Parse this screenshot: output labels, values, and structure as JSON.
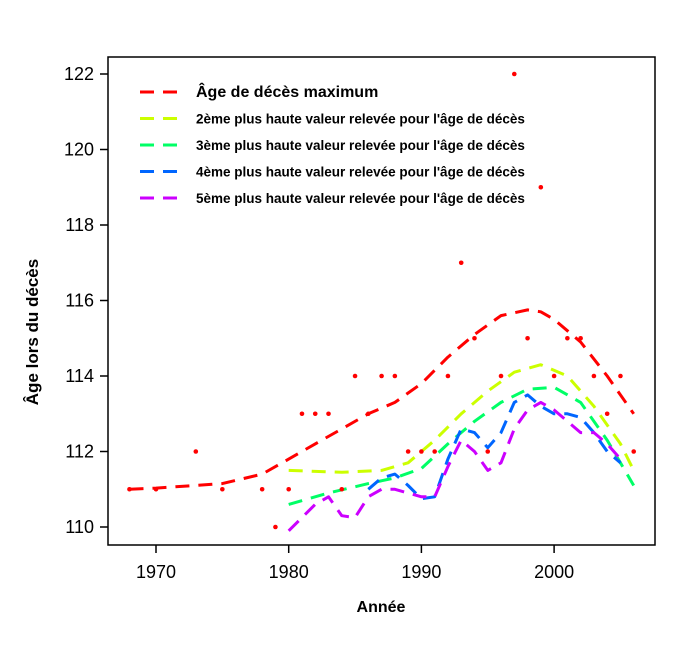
{
  "chart_data": {
    "type": "line",
    "xlabel": "Année",
    "ylabel": "Âge lors du décès",
    "xlim": [
      1966.5,
      2007.7
    ],
    "ylim": [
      109.5,
      122.5
    ],
    "xticks": [
      1970,
      1980,
      1990,
      2000
    ],
    "yticks": [
      110,
      112,
      114,
      116,
      118,
      120,
      122
    ],
    "grid": false,
    "legend_position": "top-left",
    "points": {
      "color": "#ff0000",
      "x": [
        1968,
        1970,
        1973,
        1975,
        1978,
        1979,
        1980,
        1981,
        1982,
        1983,
        1984,
        1985,
        1986,
        1987,
        1988,
        1989,
        1990,
        1991,
        1992,
        1993,
        1994,
        1995,
        1996,
        1997,
        1998,
        1999,
        2000,
        2001,
        2002,
        2003,
        2004,
        2005,
        2006
      ],
      "y": [
        111,
        111,
        112,
        111,
        111,
        110,
        111,
        113,
        113,
        113,
        111,
        114,
        113,
        114,
        114,
        112,
        112,
        112,
        114,
        117,
        115,
        112,
        114,
        122,
        115,
        119,
        114,
        115,
        115,
        114,
        113,
        114,
        112
      ]
    },
    "series": [
      {
        "name": "Âge de décès maximum",
        "color": "#ff0000",
        "bold": true,
        "x": [
          1968,
          1970,
          1975,
          1978,
          1980,
          1982,
          1984,
          1986,
          1988,
          1990,
          1992,
          1994,
          1996,
          1998,
          1999,
          2000,
          2002,
          2004,
          2006
        ],
        "y": [
          111,
          111.03,
          111.15,
          111.4,
          111.8,
          112.2,
          112.6,
          113,
          113.3,
          113.8,
          114.5,
          115.1,
          115.6,
          115.75,
          115.7,
          115.5,
          114.9,
          114,
          113
        ]
      },
      {
        "name": "2ème plus haute valeur relevée pour l'âge de décès",
        "color": "#ccff00",
        "x": [
          1980,
          1984,
          1987,
          1989,
          1991,
          1993,
          1995,
          1997,
          1999,
          2001,
          2003,
          2005,
          2006
        ],
        "y": [
          111.5,
          111.45,
          111.5,
          111.7,
          112.3,
          113,
          113.6,
          114.1,
          114.3,
          114,
          113.2,
          112.2,
          111.5
        ]
      },
      {
        "name": "3ème plus haute valeur relevée pour l'âge de décès",
        "color": "#00ff66",
        "x": [
          1980,
          1983,
          1986,
          1988,
          1990,
          1992,
          1994,
          1996,
          1998,
          2000,
          2002,
          2004,
          2006
        ],
        "y": [
          110.6,
          110.9,
          111.15,
          111.3,
          111.55,
          112.2,
          112.8,
          113.3,
          113.65,
          113.7,
          113.3,
          112.3,
          111.1
        ]
      },
      {
        "name": "4ème plus haute valeur relevée pour l'âge de décès",
        "color": "#0066ff",
        "x": [
          1986,
          1987,
          1988,
          1989,
          1990,
          1991,
          1992,
          1993,
          1994,
          1995,
          1996,
          1997,
          1998,
          1999,
          2000,
          2001,
          2002,
          2003,
          2004,
          2005
        ],
        "y": [
          111,
          111.3,
          111.4,
          111.1,
          110.75,
          110.8,
          111.8,
          112.6,
          112.5,
          112.1,
          112.5,
          113.3,
          113.5,
          113.2,
          113,
          113,
          112.9,
          112.5,
          112,
          111.7
        ]
      },
      {
        "name": "5ème plus haute valeur relevée pour l'âge de décès",
        "color": "#cc00ff",
        "x": [
          1980,
          1982,
          1983,
          1984,
          1985,
          1986,
          1987,
          1988,
          1989,
          1990,
          1991,
          1992,
          1993,
          1994,
          1995,
          1996,
          1997,
          1998,
          1999,
          2000,
          2001,
          2002,
          2003,
          2004,
          2005
        ],
        "y": [
          109.9,
          110.6,
          110.8,
          110.3,
          110.25,
          110.8,
          111,
          111,
          110.9,
          110.8,
          110.8,
          111.6,
          112.3,
          112,
          111.5,
          111.7,
          112.6,
          113.1,
          113.3,
          113.1,
          112.8,
          112.5,
          112.5,
          112.2,
          111.8
        ]
      }
    ]
  }
}
